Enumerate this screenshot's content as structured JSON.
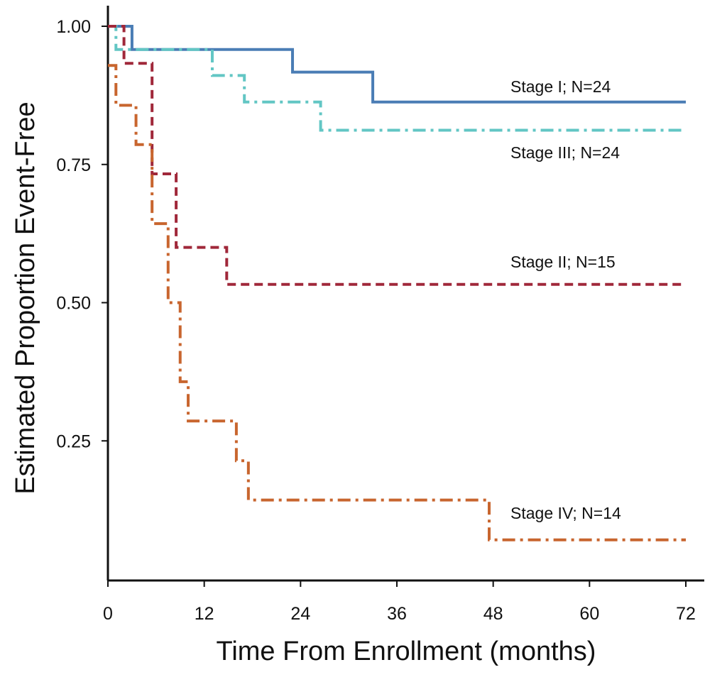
{
  "chart_data": {
    "type": "line",
    "title": "",
    "xlabel": "Time From Enrollment (months)",
    "ylabel": "Estimated Proportion Event-Free",
    "xlim": [
      0,
      72
    ],
    "ylim": [
      0,
      1.0
    ],
    "x_ticks": [
      0,
      12,
      24,
      36,
      48,
      60,
      72
    ],
    "x_tick_labels": [
      "0",
      "12",
      "24",
      "36",
      "48",
      "60",
      "72"
    ],
    "y_ticks": [
      0.25,
      0.5,
      0.75,
      1.0
    ],
    "y_tick_labels": [
      "0.25",
      "0.50",
      "0.75",
      "1.00"
    ],
    "grid": false,
    "step": true,
    "series": [
      {
        "name": "Stage I; N=24",
        "color": "#4a7db5",
        "dash": "solid",
        "x": [
          0,
          1,
          3,
          23,
          33,
          72
        ],
        "y": [
          1.0,
          1.0,
          0.958,
          0.917,
          0.863,
          0.863
        ]
      },
      {
        "name": "Stage III; N=24",
        "color": "#62c6c4",
        "dash": "dashdot",
        "x": [
          0,
          1,
          13,
          17,
          26.5,
          72
        ],
        "y": [
          1.0,
          0.958,
          0.911,
          0.863,
          0.812,
          0.812
        ]
      },
      {
        "name": "Stage II; N=15",
        "color": "#a0283a",
        "dash": "dash",
        "x": [
          0,
          2,
          5.5,
          8.5,
          14.8,
          72
        ],
        "y": [
          1.0,
          0.933,
          0.733,
          0.6,
          0.533,
          0.533
        ]
      },
      {
        "name": "Stage IV; N=14",
        "color": "#c8652e",
        "dash": "dashdot",
        "x": [
          0,
          1,
          3.5,
          5.5,
          7.5,
          9,
          10,
          16,
          17.5,
          47.5,
          72
        ],
        "y": [
          0.929,
          0.857,
          0.786,
          0.643,
          0.5,
          0.357,
          0.286,
          0.214,
          0.143,
          0.071,
          0.071
        ]
      }
    ]
  }
}
